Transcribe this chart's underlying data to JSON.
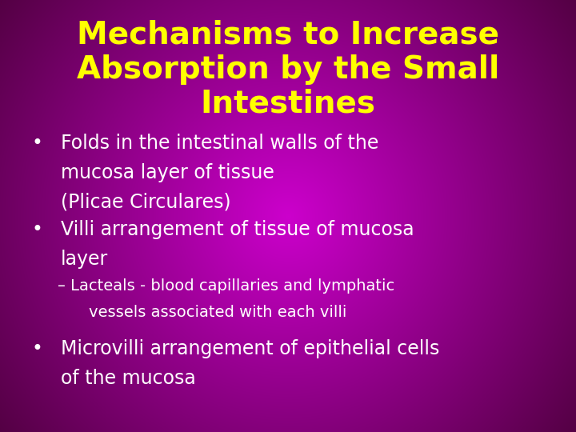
{
  "title_line1": "Mechanisms to Increase",
  "title_line2": "Absorption by the Small",
  "title_line3": "Intestines",
  "title_color": "#FFFF00",
  "title_fontsize": 28,
  "bg_color_center": "#CC00CC",
  "bg_color_edge": "#550044",
  "bullet_color": "#FFFFFF",
  "bullet_fontsize": 17,
  "sub_bullet_fontsize": 14,
  "bullet1_line1": "Folds in the intestinal walls of the",
  "bullet1_line2": "mucosa layer of tissue",
  "bullet1_line3": "(Plicae Circulares)",
  "bullet2_line1": "Villi arrangement of tissue of mucosa",
  "bullet2_line2": "layer",
  "sub_bullet_line1": "– Lacteals - blood capillaries and lymphatic",
  "sub_bullet_line2": "    vessels associated with each villi",
  "bullet3_line1": "Microvilli arrangement of epithelial cells",
  "bullet3_line2": "of the mucosa",
  "bullet_dot": "•"
}
